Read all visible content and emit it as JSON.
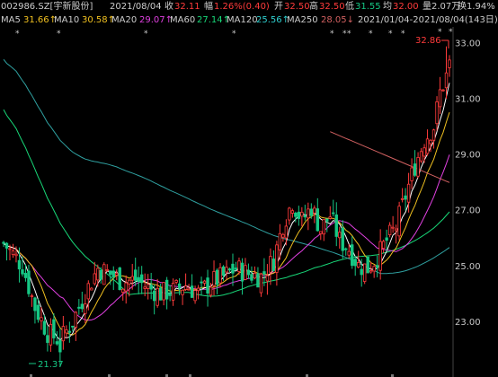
{
  "header": {
    "code": "002986.SZ[宇新股份]",
    "date": "2021/08/04",
    "close_label": "收",
    "close": "32.11",
    "change_label": "幅",
    "change": "1.26%(0.40)",
    "open_label": "开",
    "open": "32.50",
    "high_label": "高",
    "high": "32.50",
    "low_label": "低",
    "low": "31.55",
    "avg_label": "均",
    "avg": "32.00",
    "volume": "量2.07万",
    "turnover": "换1.94%"
  },
  "ma_row": {
    "ma5_label": "MA5",
    "ma5": "31.66↑",
    "ma10_label": "MA10",
    "ma10": "30.58↑",
    "ma20_label": "MA20",
    "ma20": "29.07↑",
    "ma60_label": "MA60",
    "ma60": "27.14↑",
    "ma120_label": "MA120",
    "ma120": "25.56↑",
    "ma250_label": "MA250",
    "ma250": "28.05↓",
    "range": "2021/01/04-2021/08/04(143日)"
  },
  "colors": {
    "up": "#ff3b3b",
    "down": "#16c784",
    "ma5": "#ffffff",
    "ma10": "#f0c020",
    "ma20": "#e040e0",
    "ma60": "#18d878",
    "ma120": "#2fa0a0",
    "ma250": "#d06060"
  },
  "chart_data": {
    "type": "candlestick",
    "y_ticks": [
      "33.00",
      "31.00",
      "29.00",
      "27.00",
      "25.00",
      "23.00"
    ],
    "ylim": [
      21.0,
      33.3
    ],
    "high_label": "32.86",
    "low_label": "21.37",
    "markers": [
      "*",
      "*",
      "*",
      "*",
      "*",
      "*",
      "*",
      "*",
      "*",
      "*"
    ]
  }
}
